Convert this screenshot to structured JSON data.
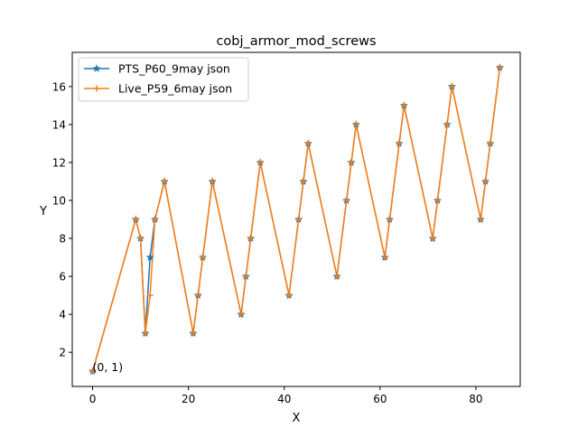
{
  "chart_data": {
    "type": "line",
    "title": "cobj_armor_mod_screws",
    "xlabel": "X",
    "ylabel": "Y",
    "xlim": [
      -4.25,
      89.25
    ],
    "ylim": [
      0.2,
      17.8
    ],
    "xticks": [
      0,
      20,
      40,
      60,
      80
    ],
    "yticks": [
      2,
      4,
      6,
      8,
      10,
      12,
      14,
      16
    ],
    "legend_position": "top-left",
    "annotation": {
      "text": "(0, 1)",
      "x": 0,
      "y": 1
    },
    "series": [
      {
        "name": "PTS_P60_9may json",
        "color": "#1f77b4",
        "marker": "star",
        "x": [
          0,
          9,
          10,
          11,
          12,
          13,
          15,
          21,
          22,
          23,
          25,
          31,
          32,
          33,
          35,
          41,
          43,
          44,
          45,
          51,
          53,
          54,
          55,
          61,
          62,
          64,
          65,
          71,
          72,
          74,
          75,
          81,
          82,
          83,
          85
        ],
        "y": [
          1,
          9,
          8,
          3,
          7,
          9,
          11,
          3,
          5,
          7,
          11,
          4,
          6,
          8,
          12,
          5,
          9,
          11,
          13,
          6,
          10,
          12,
          14,
          7,
          9,
          13,
          15,
          8,
          10,
          14,
          16,
          9,
          11,
          13,
          17
        ]
      },
      {
        "name": "Live_P59_6may json",
        "color": "#ff7f0e",
        "marker": "plus",
        "x": [
          0,
          9,
          10,
          11,
          12,
          13,
          15,
          21,
          22,
          23,
          25,
          31,
          32,
          33,
          35,
          41,
          43,
          44,
          45,
          51,
          53,
          54,
          55,
          61,
          62,
          64,
          65,
          71,
          72,
          74,
          75,
          81,
          82,
          83,
          85
        ],
        "y": [
          1,
          9,
          8,
          3,
          5,
          9,
          11,
          3,
          5,
          7,
          11,
          4,
          6,
          8,
          12,
          5,
          9,
          11,
          13,
          6,
          10,
          12,
          14,
          7,
          9,
          13,
          15,
          8,
          10,
          14,
          16,
          9,
          11,
          13,
          17
        ]
      }
    ]
  }
}
